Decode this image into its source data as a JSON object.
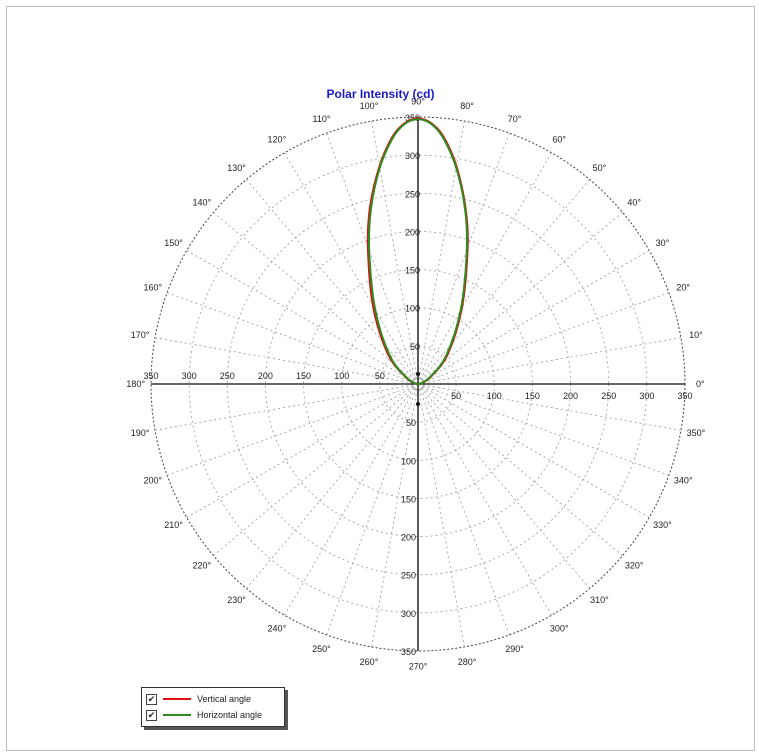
{
  "chart_data": {
    "type": "polar",
    "title": "Polar Intensity (cd)",
    "radial_max": 350,
    "radial_ticks": [
      50,
      100,
      150,
      200,
      250,
      300,
      350
    ],
    "angle_step_deg": 10,
    "grid": true,
    "angle_unit_symbol": "°",
    "legend_placement": "bottom-left",
    "legend_checkbox": "✔",
    "series": [
      {
        "name": "Vertical angle",
        "color": "#dd1111",
        "points": [
          {
            "angle": 0,
            "r": 0
          },
          {
            "angle": 15,
            "r": 6
          },
          {
            "angle": 30,
            "r": 20
          },
          {
            "angle": 45,
            "r": 55
          },
          {
            "angle": 60,
            "r": 115
          },
          {
            "angle": 70,
            "r": 190
          },
          {
            "angle": 75,
            "r": 240
          },
          {
            "angle": 80,
            "r": 290
          },
          {
            "angle": 84,
            "r": 325
          },
          {
            "angle": 87,
            "r": 342
          },
          {
            "angle": 90,
            "r": 348
          },
          {
            "angle": 93,
            "r": 342
          },
          {
            "angle": 96,
            "r": 325
          },
          {
            "angle": 100,
            "r": 290
          },
          {
            "angle": 105,
            "r": 242
          },
          {
            "angle": 110,
            "r": 192
          },
          {
            "angle": 120,
            "r": 118
          },
          {
            "angle": 135,
            "r": 56
          },
          {
            "angle": 150,
            "r": 20
          },
          {
            "angle": 165,
            "r": 6
          },
          {
            "angle": 180,
            "r": 0
          }
        ]
      },
      {
        "name": "Horizontal angle",
        "color": "#2e8b1f",
        "points": [
          {
            "angle": 0,
            "r": 0
          },
          {
            "angle": 15,
            "r": 5
          },
          {
            "angle": 30,
            "r": 18
          },
          {
            "angle": 45,
            "r": 52
          },
          {
            "angle": 60,
            "r": 112
          },
          {
            "angle": 70,
            "r": 187
          },
          {
            "angle": 75,
            "r": 238
          },
          {
            "angle": 80,
            "r": 288
          },
          {
            "angle": 84,
            "r": 323
          },
          {
            "angle": 87,
            "r": 341
          },
          {
            "angle": 90,
            "r": 347
          },
          {
            "angle": 93,
            "r": 341
          },
          {
            "angle": 96,
            "r": 323
          },
          {
            "angle": 100,
            "r": 288
          },
          {
            "angle": 105,
            "r": 238
          },
          {
            "angle": 110,
            "r": 187
          },
          {
            "angle": 120,
            "r": 112
          },
          {
            "angle": 135,
            "r": 52
          },
          {
            "angle": 150,
            "r": 18
          },
          {
            "angle": 165,
            "r": 5
          },
          {
            "angle": 180,
            "r": 0
          }
        ]
      }
    ]
  }
}
